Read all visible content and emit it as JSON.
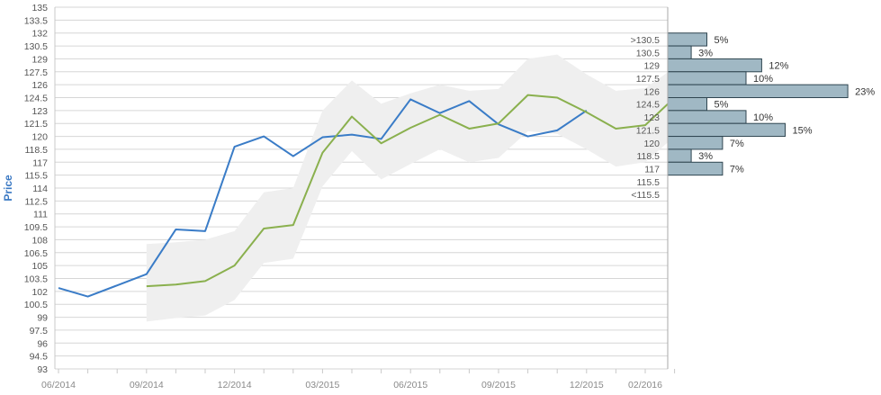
{
  "chart_data": {
    "type": "line",
    "ylabel": "Price",
    "xlabel": "",
    "ylim": [
      93,
      135
    ],
    "y_ticks": [
      "93",
      "94.5",
      "96",
      "97.5",
      "99",
      "100.5",
      "102",
      "103.5",
      "105",
      "106.5",
      "108",
      "109.5",
      "111",
      "112.5",
      "114",
      "115.5",
      "117",
      "118.5",
      "120",
      "121.5",
      "123",
      "124.5",
      "126",
      "127.5",
      "129",
      "130.5",
      "132",
      "133.5",
      "135"
    ],
    "x_ticks": [
      "06/2014",
      "09/2014",
      "12/2014",
      "03/2015",
      "06/2015",
      "09/2015",
      "12/2015",
      "02/2016"
    ],
    "grid": true,
    "series": [
      {
        "color": "#3a7cc7",
        "points": [
          [
            "2014-06",
            102.4
          ],
          [
            "2014-07",
            101.4
          ],
          [
            "2014-08",
            102.7
          ],
          [
            "2014-09",
            104.0
          ],
          [
            "2014-10",
            109.2
          ],
          [
            "2014-11",
            109.0
          ],
          [
            "2014-12",
            118.8
          ],
          [
            "2015-01",
            120.0
          ],
          [
            "2015-02",
            117.7
          ],
          [
            "2015-03",
            119.9
          ],
          [
            "2015-04",
            120.2
          ],
          [
            "2015-05",
            119.7
          ],
          [
            "2015-06",
            124.3
          ],
          [
            "2015-07",
            122.7
          ],
          [
            "2015-08",
            124.1
          ],
          [
            "2015-09",
            121.4
          ],
          [
            "2015-10",
            120.0
          ],
          [
            "2015-11",
            120.7
          ],
          [
            "2015-12",
            123.0
          ]
        ]
      },
      {
        "color": "#8ab04e",
        "points": [
          [
            "2014-09",
            102.6
          ],
          [
            "2014-10",
            102.8
          ],
          [
            "2014-11",
            103.2
          ],
          [
            "2014-12",
            105.0
          ],
          [
            "2015-01",
            109.3
          ],
          [
            "2015-02",
            109.7
          ],
          [
            "2015-03",
            118.1
          ],
          [
            "2015-04",
            122.3
          ],
          [
            "2015-05",
            119.2
          ],
          [
            "2015-06",
            121.0
          ],
          [
            "2015-07",
            122.5
          ],
          [
            "2015-08",
            120.9
          ],
          [
            "2015-09",
            121.5
          ],
          [
            "2015-10",
            124.8
          ],
          [
            "2015-11",
            124.5
          ],
          [
            "2015-12",
            122.8
          ],
          [
            "2016-01",
            120.9
          ],
          [
            "2016-02",
            121.3
          ],
          [
            "2016-03",
            124.5
          ]
        ]
      }
    ],
    "band": {
      "color": "#efefef",
      "upper": [
        [
          "2014-09",
          107.5
        ],
        [
          "2014-10",
          107.7
        ],
        [
          "2014-11",
          108.0
        ],
        [
          "2014-12",
          109.0
        ],
        [
          "2015-01",
          113.5
        ],
        [
          "2015-02",
          114.0
        ],
        [
          "2015-03",
          123.0
        ],
        [
          "2015-04",
          126.5
        ],
        [
          "2015-05",
          123.8
        ],
        [
          "2015-06",
          125.0
        ],
        [
          "2015-07",
          126.0
        ],
        [
          "2015-08",
          125.3
        ],
        [
          "2015-09",
          125.5
        ],
        [
          "2015-10",
          129.0
        ],
        [
          "2015-11",
          129.5
        ],
        [
          "2015-12",
          127.2
        ],
        [
          "2016-01",
          125.3
        ],
        [
          "2016-02",
          125.6
        ],
        [
          "2016-03",
          128.0
        ]
      ],
      "lower": [
        [
          "2014-09",
          98.5
        ],
        [
          "2014-10",
          98.9
        ],
        [
          "2014-11",
          99.2
        ],
        [
          "2014-12",
          101.0
        ],
        [
          "2015-01",
          105.3
        ],
        [
          "2015-02",
          105.8
        ],
        [
          "2015-03",
          114.2
        ],
        [
          "2015-04",
          118.3
        ],
        [
          "2015-05",
          115.0
        ],
        [
          "2015-06",
          116.8
        ],
        [
          "2015-07",
          118.5
        ],
        [
          "2015-08",
          117.0
        ],
        [
          "2015-09",
          117.5
        ],
        [
          "2015-10",
          120.6
        ],
        [
          "2015-11",
          120.3
        ],
        [
          "2015-12",
          118.5
        ],
        [
          "2016-01",
          116.5
        ],
        [
          "2016-02",
          117.0
        ],
        [
          "2016-03",
          120.0
        ]
      ]
    },
    "distribution": {
      "bar_color": "#a0b8c4",
      "bins": [
        {
          "label": ">130.5",
          "percent": 5,
          "y": 131.25
        },
        {
          "label": "130.5",
          "percent": 3,
          "y": 129.75
        },
        {
          "label": "129",
          "percent": 12,
          "y": 128.25
        },
        {
          "label": "127.5",
          "percent": 10,
          "y": 126.75
        },
        {
          "label": "126",
          "percent": 23,
          "y": 125.25
        },
        {
          "label": "124.5",
          "percent": 5,
          "y": 123.75
        },
        {
          "label": "123",
          "percent": 10,
          "y": 122.25
        },
        {
          "label": "121.5",
          "percent": 15,
          "y": 120.75
        },
        {
          "label": "120",
          "percent": 7,
          "y": 119.25
        },
        {
          "label": "118.5",
          "percent": 3,
          "y": 117.75
        },
        {
          "label": "117",
          "percent": 7,
          "y": 116.25
        },
        {
          "label": "115.5",
          "percent": null,
          "y": 114.75
        },
        {
          "label": "<115.5",
          "percent": null,
          "y": 113.25
        }
      ]
    }
  }
}
